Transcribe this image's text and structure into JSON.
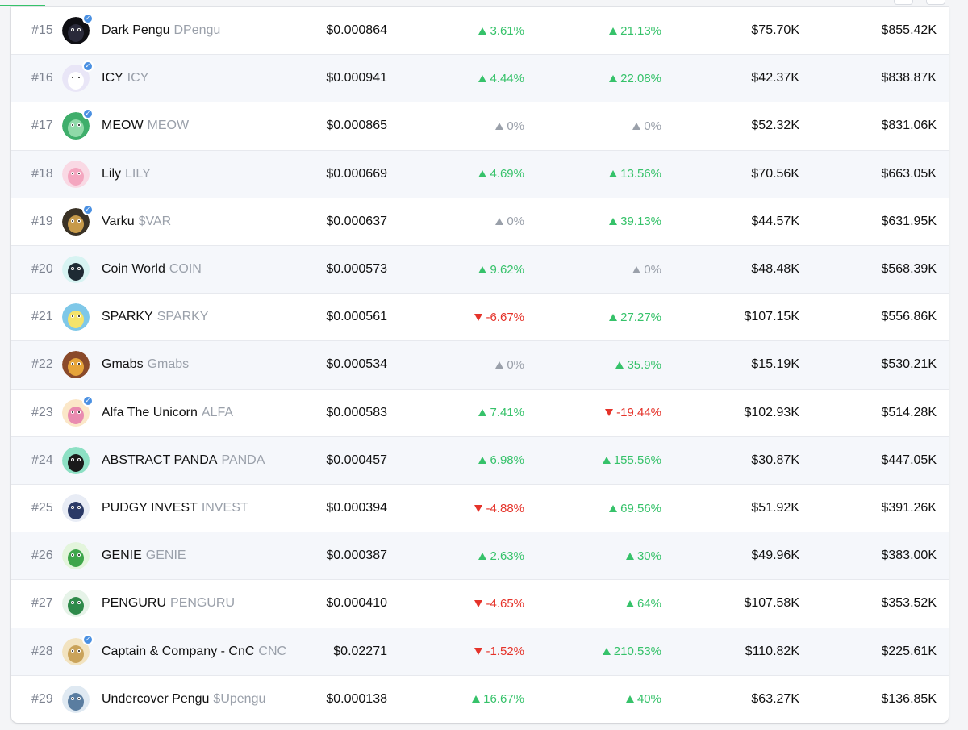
{
  "colors": {
    "up": "#36c26a",
    "down": "#e5332a",
    "flat": "#9aa0aa",
    "verified_badge": "#4a90e2",
    "row_alt": "#f5f7fb"
  },
  "tokens": [
    {
      "rank": "#15",
      "name": "Dark Pengu",
      "symbol": "DPengu",
      "price": "$0.000864",
      "change1": "3.61%",
      "dir1": "up",
      "change2": "21.13%",
      "dir2": "up",
      "volume": "$75.70K",
      "mcap": "$855.42K",
      "verified": true,
      "avatar_icon": "dark-pengu-avatar-icon",
      "avatar_bg": "#0f0f14",
      "avatar_fg": "#2a2a3a"
    },
    {
      "rank": "#16",
      "name": "ICY",
      "symbol": "ICY",
      "price": "$0.000941",
      "change1": "4.44%",
      "dir1": "up",
      "change2": "22.08%",
      "dir2": "up",
      "volume": "$42.37K",
      "mcap": "$838.87K",
      "verified": true,
      "avatar_icon": "icy-avatar-icon",
      "avatar_bg": "#e9e6f7",
      "avatar_fg": "#ffffff"
    },
    {
      "rank": "#17",
      "name": "MEOW",
      "symbol": "MEOW",
      "price": "$0.000865",
      "change1": "0%",
      "dir1": "flat",
      "change2": "0%",
      "dir2": "flat",
      "volume": "$52.32K",
      "mcap": "$831.06K",
      "verified": true,
      "avatar_icon": "meow-avatar-icon",
      "avatar_bg": "#3fae6b",
      "avatar_fg": "#8fd9a8"
    },
    {
      "rank": "#18",
      "name": "Lily",
      "symbol": "LILY",
      "price": "$0.000669",
      "change1": "4.69%",
      "dir1": "up",
      "change2": "13.56%",
      "dir2": "up",
      "volume": "$70.56K",
      "mcap": "$663.05K",
      "verified": false,
      "avatar_icon": "lily-avatar-icon",
      "avatar_bg": "#f9d9e4",
      "avatar_fg": "#f4a6bf"
    },
    {
      "rank": "#19",
      "name": "Varku",
      "symbol": "$VAR",
      "price": "$0.000637",
      "change1": "0%",
      "dir1": "flat",
      "change2": "39.13%",
      "dir2": "up",
      "volume": "$44.57K",
      "mcap": "$631.95K",
      "verified": true,
      "avatar_icon": "varku-avatar-icon",
      "avatar_bg": "#3a3226",
      "avatar_fg": "#c79a4a"
    },
    {
      "rank": "#20",
      "name": "Coin World",
      "symbol": "COIN",
      "price": "$0.000573",
      "change1": "9.62%",
      "dir1": "up",
      "change2": "0%",
      "dir2": "flat",
      "volume": "$48.48K",
      "mcap": "$568.39K",
      "verified": false,
      "avatar_icon": "coin-world-avatar-icon",
      "avatar_bg": "#d7f3f2",
      "avatar_fg": "#1e2a33"
    },
    {
      "rank": "#21",
      "name": "SPARKY",
      "symbol": "SPARKY",
      "price": "$0.000561",
      "change1": "-6.67%",
      "dir1": "down",
      "change2": "27.27%",
      "dir2": "up",
      "volume": "$107.15K",
      "mcap": "$556.86K",
      "verified": false,
      "avatar_icon": "sparky-avatar-icon",
      "avatar_bg": "#7fc8e8",
      "avatar_fg": "#f5e36a"
    },
    {
      "rank": "#22",
      "name": "Gmabs",
      "symbol": "Gmabs",
      "price": "$0.000534",
      "change1": "0%",
      "dir1": "flat",
      "change2": "35.9%",
      "dir2": "up",
      "volume": "$15.19K",
      "mcap": "$530.21K",
      "verified": false,
      "avatar_icon": "gmabs-avatar-icon",
      "avatar_bg": "#8a4a2a",
      "avatar_fg": "#e6a43a"
    },
    {
      "rank": "#23",
      "name": "Alfa The Unicorn",
      "symbol": "ALFA",
      "price": "$0.000583",
      "change1": "7.41%",
      "dir1": "up",
      "change2": "-19.44%",
      "dir2": "down",
      "volume": "$102.93K",
      "mcap": "$514.28K",
      "verified": true,
      "avatar_icon": "alfa-unicorn-avatar-icon",
      "avatar_bg": "#fbe7c8",
      "avatar_fg": "#e98bb0"
    },
    {
      "rank": "#24",
      "name": "ABSTRACT PANDA",
      "symbol": "PANDA",
      "price": "$0.000457",
      "change1": "6.98%",
      "dir1": "up",
      "change2": "155.56%",
      "dir2": "up",
      "volume": "$30.87K",
      "mcap": "$447.05K",
      "verified": false,
      "avatar_icon": "abstract-panda-avatar-icon",
      "avatar_bg": "#8de0c4",
      "avatar_fg": "#1a1a1a"
    },
    {
      "rank": "#25",
      "name": "PUDGY INVEST",
      "symbol": "INVEST",
      "price": "$0.000394",
      "change1": "-4.88%",
      "dir1": "down",
      "change2": "69.56%",
      "dir2": "up",
      "volume": "$51.92K",
      "mcap": "$391.26K",
      "verified": false,
      "avatar_icon": "pudgy-invest-avatar-icon",
      "avatar_bg": "#e8ecf5",
      "avatar_fg": "#2b3a66"
    },
    {
      "rank": "#26",
      "name": "GENIE",
      "symbol": "GENIE",
      "price": "$0.000387",
      "change1": "2.63%",
      "dir1": "up",
      "change2": "30%",
      "dir2": "up",
      "volume": "$49.96K",
      "mcap": "$383.00K",
      "verified": false,
      "avatar_icon": "genie-avatar-icon",
      "avatar_bg": "#e3f5dc",
      "avatar_fg": "#3ea64a"
    },
    {
      "rank": "#27",
      "name": "PENGURU",
      "symbol": "PENGURU",
      "price": "$0.000410",
      "change1": "-4.65%",
      "dir1": "down",
      "change2": "64%",
      "dir2": "up",
      "volume": "$107.58K",
      "mcap": "$353.52K",
      "verified": false,
      "avatar_icon": "penguru-avatar-icon",
      "avatar_bg": "#e6f3e8",
      "avatar_fg": "#2e8a4a"
    },
    {
      "rank": "#28",
      "name": "Captain & Company - CnC",
      "symbol": "CNC",
      "price": "$0.02271",
      "change1": "-1.52%",
      "dir1": "down",
      "change2": "210.53%",
      "dir2": "up",
      "volume": "$110.82K",
      "mcap": "$225.61K",
      "verified": true,
      "avatar_icon": "captain-wheel-avatar-icon",
      "avatar_bg": "#f2e3c0",
      "avatar_fg": "#caa35a"
    },
    {
      "rank": "#29",
      "name": "Undercover Pengu",
      "symbol": "$Upengu",
      "price": "$0.000138",
      "change1": "16.67%",
      "dir1": "up",
      "change2": "40%",
      "dir2": "up",
      "volume": "$63.27K",
      "mcap": "$136.85K",
      "verified": false,
      "avatar_icon": "undercover-pengu-avatar-icon",
      "avatar_bg": "#dfe9f2",
      "avatar_fg": "#5a7da0"
    }
  ]
}
